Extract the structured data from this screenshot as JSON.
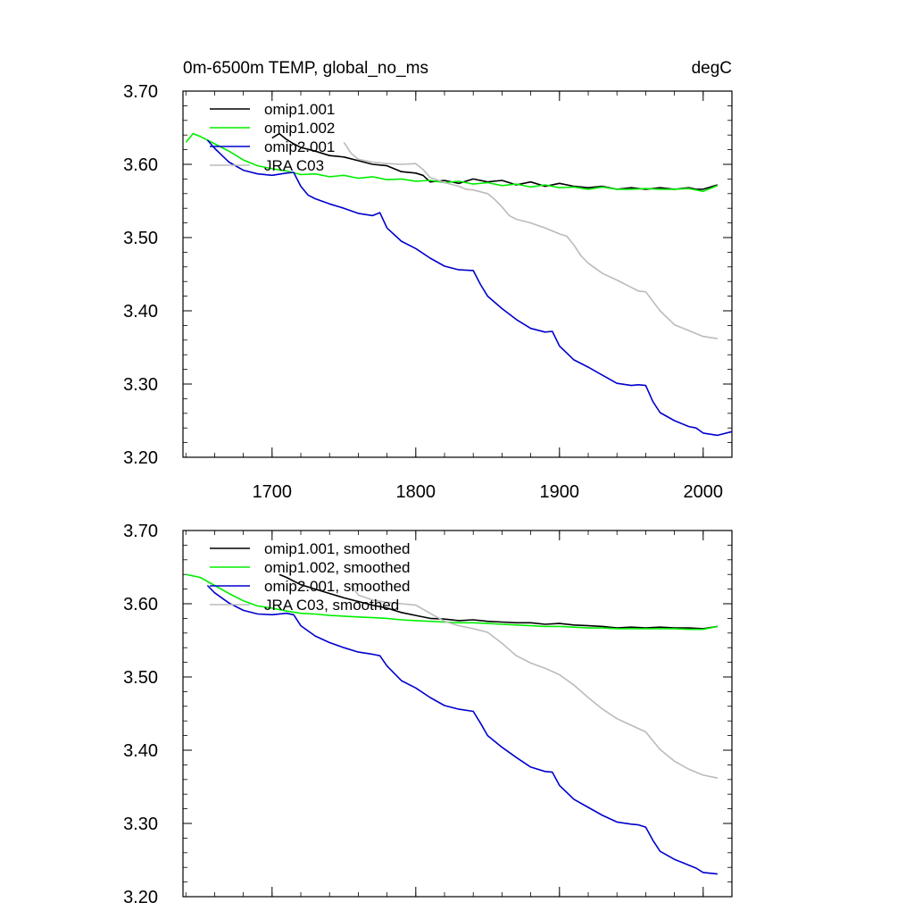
{
  "chart_data": [
    {
      "type": "line",
      "title": "0m-6500m TEMP, global_no_ms",
      "units": "degC",
      "xlabel": "",
      "ylabel": "",
      "xlim": [
        1638,
        2020
      ],
      "ylim": [
        3.2,
        3.7
      ],
      "x_ticks": [
        1700,
        1800,
        1900,
        2000
      ],
      "x_tick_labels": [
        "1700",
        "1800",
        "1900",
        "2000"
      ],
      "y_ticks": [
        3.2,
        3.3,
        3.4,
        3.5,
        3.6,
        3.7
      ],
      "y_tick_labels": [
        "3.20",
        "3.30",
        "3.40",
        "3.50",
        "3.60",
        "3.70"
      ],
      "grid": false,
      "legend": "top-left",
      "series": [
        {
          "name": "omip1.001",
          "color": "#000000",
          "x": [
            1700,
            1705,
            1710,
            1715,
            1720,
            1730,
            1740,
            1750,
            1760,
            1770,
            1780,
            1790,
            1800,
            1805,
            1810,
            1820,
            1830,
            1840,
            1850,
            1860,
            1870,
            1880,
            1890,
            1900,
            1910,
            1920,
            1930,
            1940,
            1950,
            1960,
            1970,
            1980,
            1990,
            1995,
            2000,
            2010
          ],
          "y": [
            3.636,
            3.642,
            3.634,
            3.628,
            3.623,
            3.618,
            3.612,
            3.61,
            3.605,
            3.6,
            3.598,
            3.59,
            3.588,
            3.585,
            3.576,
            3.578,
            3.574,
            3.58,
            3.576,
            3.578,
            3.572,
            3.576,
            3.57,
            3.574,
            3.57,
            3.568,
            3.57,
            3.566,
            3.568,
            3.566,
            3.568,
            3.566,
            3.568,
            3.566,
            3.566,
            3.572
          ]
        },
        {
          "name": "omip1.002",
          "color": "#00ee00",
          "x": [
            1640,
            1645,
            1650,
            1655,
            1660,
            1670,
            1680,
            1690,
            1700,
            1710,
            1720,
            1730,
            1740,
            1750,
            1760,
            1770,
            1780,
            1790,
            1800,
            1810,
            1820,
            1830,
            1840,
            1850,
            1860,
            1870,
            1880,
            1890,
            1900,
            1910,
            1920,
            1930,
            1940,
            1950,
            1960,
            1970,
            1980,
            1990,
            2000,
            2010
          ],
          "y": [
            3.63,
            3.642,
            3.638,
            3.633,
            3.628,
            3.618,
            3.606,
            3.598,
            3.594,
            3.591,
            3.586,
            3.587,
            3.583,
            3.585,
            3.581,
            3.583,
            3.579,
            3.58,
            3.577,
            3.578,
            3.575,
            3.577,
            3.573,
            3.575,
            3.571,
            3.573,
            3.569,
            3.572,
            3.568,
            3.569,
            3.566,
            3.569,
            3.566,
            3.566,
            3.567,
            3.566,
            3.566,
            3.567,
            3.563,
            3.571
          ]
        },
        {
          "name": "omip2.001",
          "color": "#0000cc",
          "x": [
            1655,
            1660,
            1670,
            1680,
            1690,
            1700,
            1710,
            1715,
            1720,
            1725,
            1730,
            1740,
            1750,
            1760,
            1770,
            1775,
            1780,
            1790,
            1800,
            1810,
            1820,
            1830,
            1840,
            1845,
            1850,
            1860,
            1870,
            1880,
            1890,
            1895,
            1900,
            1910,
            1920,
            1930,
            1940,
            1950,
            1955,
            1960,
            1965,
            1970,
            1980,
            1990,
            1995,
            2000,
            2010,
            2020
          ],
          "y": [
            3.633,
            3.622,
            3.603,
            3.592,
            3.587,
            3.585,
            3.588,
            3.589,
            3.57,
            3.558,
            3.553,
            3.546,
            3.54,
            3.533,
            3.53,
            3.534,
            3.513,
            3.495,
            3.485,
            3.472,
            3.461,
            3.456,
            3.455,
            3.436,
            3.42,
            3.403,
            3.388,
            3.376,
            3.371,
            3.372,
            3.352,
            3.333,
            3.323,
            3.312,
            3.301,
            3.298,
            3.299,
            3.298,
            3.276,
            3.261,
            3.25,
            3.242,
            3.24,
            3.233,
            3.23,
            3.235
          ]
        },
        {
          "name": "JRA C03",
          "color": "#bbbbbb",
          "x": [
            1750,
            1755,
            1760,
            1770,
            1780,
            1790,
            1800,
            1805,
            1810,
            1820,
            1830,
            1835,
            1840,
            1850,
            1855,
            1860,
            1865,
            1870,
            1880,
            1890,
            1900,
            1905,
            1910,
            1915,
            1920,
            1930,
            1940,
            1950,
            1955,
            1960,
            1970,
            1980,
            1990,
            2000,
            2010
          ],
          "y": [
            3.63,
            3.615,
            3.607,
            3.603,
            3.601,
            3.6,
            3.601,
            3.593,
            3.582,
            3.575,
            3.57,
            3.566,
            3.565,
            3.56,
            3.552,
            3.542,
            3.53,
            3.525,
            3.52,
            3.513,
            3.505,
            3.502,
            3.49,
            3.475,
            3.465,
            3.451,
            3.442,
            3.432,
            3.427,
            3.426,
            3.4,
            3.381,
            3.373,
            3.365,
            3.362
          ]
        }
      ]
    },
    {
      "type": "line",
      "title": "",
      "xlabel": "",
      "ylabel": "",
      "xlim": [
        1638,
        2020
      ],
      "ylim": [
        3.2,
        3.7
      ],
      "x_ticks": [
        1700,
        1800,
        1900,
        2000
      ],
      "y_ticks": [
        3.2,
        3.3,
        3.4,
        3.5,
        3.6,
        3.7
      ],
      "y_tick_labels": [
        "3.20",
        "3.30",
        "3.40",
        "3.50",
        "3.60",
        "3.70"
      ],
      "grid": false,
      "legend": "top-left",
      "series": [
        {
          "name": "omip1.001, smoothed",
          "color": "#000000",
          "x": [
            1705,
            1710,
            1720,
            1730,
            1740,
            1750,
            1760,
            1770,
            1780,
            1790,
            1800,
            1810,
            1820,
            1830,
            1840,
            1850,
            1860,
            1870,
            1880,
            1890,
            1900,
            1910,
            1920,
            1930,
            1940,
            1950,
            1960,
            1970,
            1980,
            1990,
            2000,
            2010
          ],
          "y": [
            3.64,
            3.636,
            3.626,
            3.62,
            3.614,
            3.608,
            3.603,
            3.598,
            3.594,
            3.588,
            3.584,
            3.58,
            3.579,
            3.577,
            3.578,
            3.576,
            3.575,
            3.574,
            3.574,
            3.572,
            3.573,
            3.571,
            3.57,
            3.569,
            3.567,
            3.568,
            3.567,
            3.568,
            3.567,
            3.567,
            3.566,
            3.569
          ]
        },
        {
          "name": "omip1.002, smoothed",
          "color": "#00ee00",
          "x": [
            1640,
            1650,
            1660,
            1670,
            1680,
            1690,
            1700,
            1710,
            1720,
            1730,
            1740,
            1750,
            1760,
            1770,
            1780,
            1790,
            1800,
            1810,
            1820,
            1830,
            1840,
            1850,
            1860,
            1870,
            1880,
            1890,
            1900,
            1910,
            1920,
            1930,
            1940,
            1950,
            1960,
            1970,
            1980,
            1990,
            2000,
            2010
          ],
          "y": [
            3.64,
            3.636,
            3.625,
            3.614,
            3.604,
            3.597,
            3.594,
            3.59,
            3.587,
            3.586,
            3.584,
            3.583,
            3.582,
            3.581,
            3.58,
            3.578,
            3.577,
            3.576,
            3.575,
            3.574,
            3.574,
            3.573,
            3.572,
            3.571,
            3.57,
            3.569,
            3.569,
            3.568,
            3.567,
            3.567,
            3.566,
            3.566,
            3.566,
            3.566,
            3.566,
            3.565,
            3.565,
            3.569
          ]
        },
        {
          "name": "omip2.001, smoothed",
          "color": "#0000cc",
          "x": [
            1655,
            1660,
            1670,
            1680,
            1690,
            1700,
            1710,
            1715,
            1720,
            1730,
            1740,
            1750,
            1760,
            1770,
            1775,
            1780,
            1790,
            1800,
            1810,
            1820,
            1830,
            1840,
            1845,
            1850,
            1860,
            1870,
            1880,
            1890,
            1895,
            1900,
            1910,
            1920,
            1930,
            1940,
            1950,
            1955,
            1960,
            1965,
            1970,
            1980,
            1990,
            1995,
            2000,
            2010
          ],
          "y": [
            3.625,
            3.615,
            3.601,
            3.591,
            3.586,
            3.585,
            3.587,
            3.585,
            3.57,
            3.556,
            3.547,
            3.54,
            3.534,
            3.531,
            3.529,
            3.515,
            3.495,
            3.485,
            3.472,
            3.461,
            3.456,
            3.453,
            3.437,
            3.42,
            3.404,
            3.39,
            3.377,
            3.371,
            3.37,
            3.352,
            3.333,
            3.322,
            3.311,
            3.302,
            3.299,
            3.298,
            3.295,
            3.277,
            3.262,
            3.251,
            3.243,
            3.239,
            3.233,
            3.231
          ]
        },
        {
          "name": "JRA C03, smoothed",
          "color": "#bbbbbb",
          "x": [
            1755,
            1760,
            1770,
            1780,
            1790,
            1800,
            1810,
            1820,
            1830,
            1840,
            1850,
            1860,
            1870,
            1880,
            1890,
            1900,
            1910,
            1920,
            1930,
            1940,
            1950,
            1960,
            1970,
            1980,
            1990,
            2000,
            2010
          ],
          "y": [
            3.625,
            3.612,
            3.605,
            3.602,
            3.6,
            3.598,
            3.587,
            3.576,
            3.57,
            3.566,
            3.561,
            3.546,
            3.529,
            3.519,
            3.512,
            3.503,
            3.489,
            3.472,
            3.456,
            3.443,
            3.434,
            3.425,
            3.401,
            3.385,
            3.374,
            3.366,
            3.362
          ]
        }
      ]
    }
  ]
}
